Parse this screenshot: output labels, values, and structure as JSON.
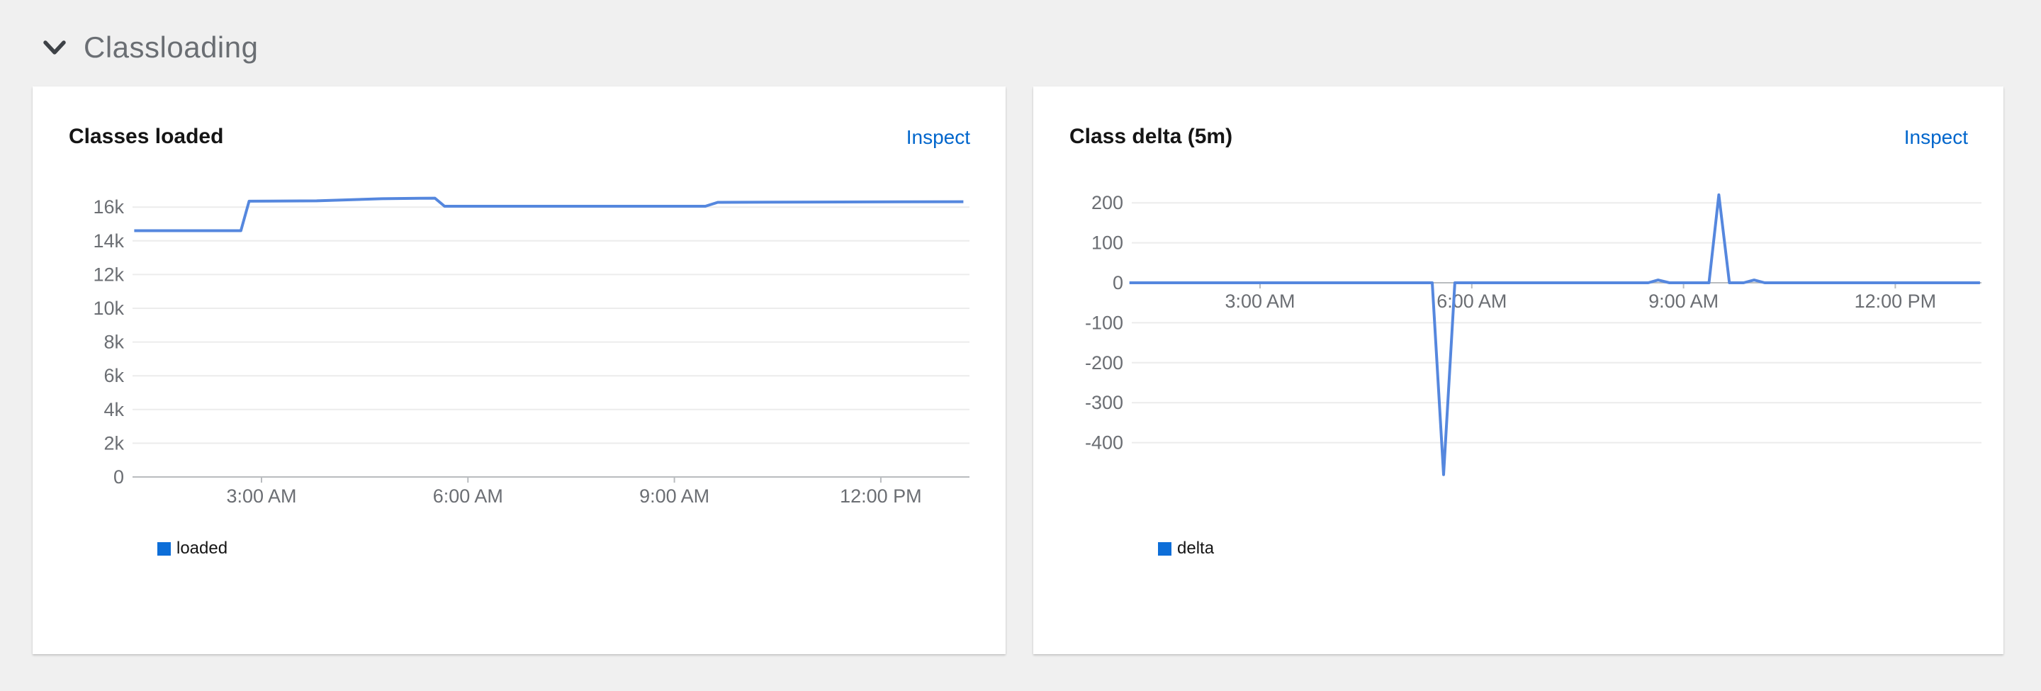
{
  "section": {
    "title": "Classloading",
    "chevron_icon": "chevron-down"
  },
  "cards": [
    {
      "title": "Classes loaded",
      "action_label": "Inspect",
      "legend_label": "loaded"
    },
    {
      "title": "Class delta (5m)",
      "action_label": "Inspect",
      "legend_label": "delta"
    }
  ],
  "colors": {
    "page_bg": "#f0f0f0",
    "card_bg": "#ffffff",
    "link": "#0066cc",
    "line": "#5587de",
    "legend_swatch": "#0d6ed8",
    "axis_text": "#6b6e73",
    "grid": "#ececec",
    "axis_line": "#b9bcbf",
    "title_text": "#151515",
    "section_text": "#6a6e73"
  },
  "chart_data": [
    {
      "type": "line",
      "title": "Classes loaded",
      "xlabel": "",
      "ylabel": "",
      "x_range_hours": [
        1.15,
        13.2
      ],
      "ylim": [
        0,
        16800
      ],
      "grid": true,
      "legend_position": "bottom-left",
      "x_ticks": [
        {
          "hour": 3,
          "label": "3:00 AM"
        },
        {
          "hour": 6,
          "label": "6:00 AM"
        },
        {
          "hour": 9,
          "label": "9:00 AM"
        },
        {
          "hour": 12,
          "label": "12:00 PM"
        }
      ],
      "y_ticks": [
        {
          "value": 0,
          "label": "0"
        },
        {
          "value": 2000,
          "label": "2k"
        },
        {
          "value": 4000,
          "label": "4k"
        },
        {
          "value": 6000,
          "label": "6k"
        },
        {
          "value": 8000,
          "label": "8k"
        },
        {
          "value": 10000,
          "label": "10k"
        },
        {
          "value": 12000,
          "label": "12k"
        },
        {
          "value": 14000,
          "label": "14k"
        },
        {
          "value": 16000,
          "label": "16k"
        }
      ],
      "series": [
        {
          "name": "loaded",
          "points": [
            [
              1.15,
              14600
            ],
            [
              2.7,
              14600
            ],
            [
              2.82,
              16350
            ],
            [
              3.8,
              16370
            ],
            [
              4.75,
              16495
            ],
            [
              5.3,
              16525
            ],
            [
              5.52,
              16530
            ],
            [
              5.66,
              16050
            ],
            [
              9.45,
              16050
            ],
            [
              9.63,
              16280
            ],
            [
              10.4,
              16295
            ],
            [
              13.2,
              16320
            ]
          ]
        }
      ]
    },
    {
      "type": "line",
      "title": "Class delta (5m)",
      "xlabel": "",
      "ylabel": "",
      "x_range_hours": [
        1.15,
        13.2
      ],
      "ylim": [
        -500,
        230
      ],
      "grid": true,
      "legend_position": "bottom-left",
      "x_ticks": [
        {
          "hour": 3,
          "label": "3:00 AM"
        },
        {
          "hour": 6,
          "label": "6:00 AM"
        },
        {
          "hour": 9,
          "label": "9:00 AM"
        },
        {
          "hour": 12,
          "label": "12:00 PM"
        }
      ],
      "y_ticks": [
        {
          "value": 200,
          "label": "200"
        },
        {
          "value": 100,
          "label": "100"
        },
        {
          "value": 0,
          "label": "0"
        },
        {
          "value": -100,
          "label": "-100"
        },
        {
          "value": -200,
          "label": "-200"
        },
        {
          "value": -300,
          "label": "-300"
        },
        {
          "value": -400,
          "label": "-400"
        }
      ],
      "series": [
        {
          "name": "delta",
          "points": [
            [
              1.15,
              0
            ],
            [
              5.44,
              0
            ],
            [
              5.6,
              -480
            ],
            [
              5.76,
              0
            ],
            [
              8.5,
              0
            ],
            [
              8.64,
              7
            ],
            [
              8.8,
              0
            ],
            [
              9.36,
              0
            ],
            [
              9.5,
              220
            ],
            [
              9.65,
              0
            ],
            [
              9.85,
              0
            ],
            [
              10.0,
              7
            ],
            [
              10.15,
              0
            ],
            [
              13.2,
              0
            ]
          ]
        }
      ]
    }
  ]
}
